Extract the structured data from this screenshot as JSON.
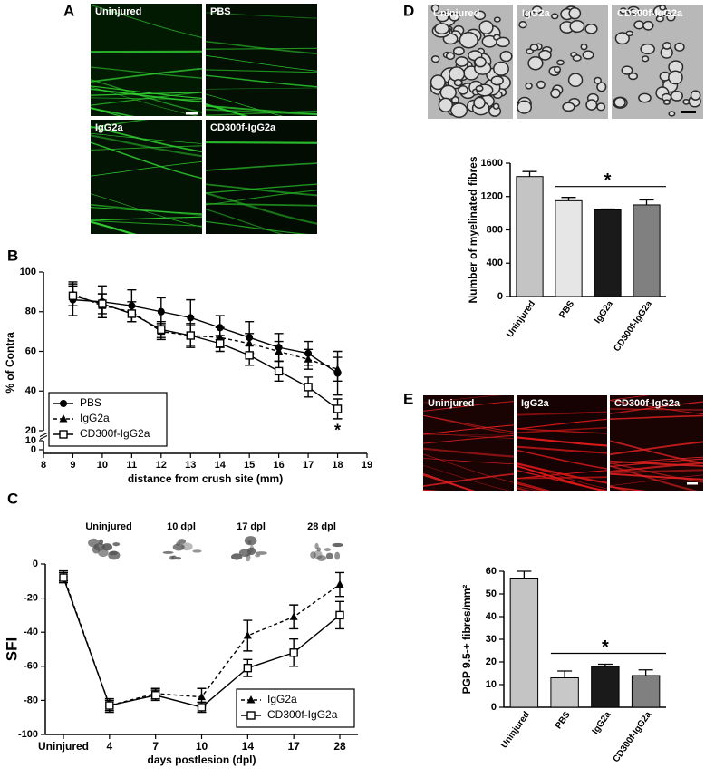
{
  "panels": {
    "A": {
      "letter": "A",
      "images": [
        "Uninjured",
        "PBS",
        "IgG2a",
        "CD300f-IgG2a"
      ]
    },
    "B": {
      "letter": "B"
    },
    "C": {
      "letter": "C",
      "images": [
        "Uninjured",
        "10 dpl",
        "17 dpl",
        "28 dpl"
      ]
    },
    "D": {
      "letter": "D",
      "images": [
        "Uninjured",
        "IgG2a",
        "CD300f-IgG2a"
      ]
    },
    "E": {
      "letter": "E",
      "images": [
        "Uninjured",
        "IgG2a",
        "CD300f-IgG2a"
      ]
    }
  },
  "chart_data": [
    {
      "type": "line",
      "xlabel": "distance from crush site (mm)",
      "ylabel": "% of Contra",
      "x": [
        9,
        10,
        11,
        12,
        13,
        14,
        15,
        16,
        17,
        18
      ],
      "xlim": [
        8,
        19
      ],
      "xticks": [
        8,
        9,
        10,
        11,
        12,
        13,
        14,
        15,
        16,
        17,
        18,
        19
      ],
      "ylim": [
        0,
        100
      ],
      "yticks": [
        0,
        10,
        20,
        40,
        60,
        80,
        100
      ],
      "axis_break": [
        10,
        20
      ],
      "legend": "lower left",
      "annotation": "*",
      "series": [
        {
          "name": "PBS",
          "color": "#000000",
          "marker": "circle",
          "dash": false,
          "values": [
            86,
            85,
            83,
            80,
            77,
            72,
            67,
            62,
            59,
            49
          ],
          "errors": [
            8,
            8,
            8,
            7,
            9,
            6,
            8,
            7,
            6,
            11
          ]
        },
        {
          "name": "IgG2a",
          "color": "#000000",
          "marker": "triangle",
          "dash": true,
          "values": [
            89,
            83,
            80,
            70,
            68,
            67,
            64,
            60,
            56,
            51
          ],
          "errors": [
            6,
            6,
            5,
            4,
            6,
            5,
            5,
            5,
            5,
            6
          ]
        },
        {
          "name": "CD300f-IgG2a",
          "color": "#000000",
          "marker": "square",
          "dash": false,
          "values": [
            88,
            84,
            79,
            71,
            68,
            64,
            58,
            50,
            42,
            31
          ],
          "errors": [
            5,
            5,
            4,
            4,
            5,
            4,
            5,
            5,
            5,
            5
          ]
        }
      ]
    },
    {
      "type": "line",
      "xlabel": "days postlesion (dpl)",
      "ylabel": "SFI",
      "categories": [
        "Uninjured",
        "4",
        "7",
        "10",
        "14",
        "17",
        "28"
      ],
      "ylim": [
        -100,
        0
      ],
      "yticks": [
        -100,
        -80,
        -60,
        -40,
        -20,
        0
      ],
      "legend": "lower right",
      "series": [
        {
          "name": "IgG2a",
          "color": "#000000",
          "marker": "triangle",
          "dash": true,
          "values": [
            -7,
            -83,
            -76,
            -78,
            -42,
            -31,
            -12
          ],
          "errors": [
            3,
            4,
            3,
            5,
            9,
            7,
            7
          ]
        },
        {
          "name": "CD300f-IgG2a",
          "color": "#000000",
          "marker": "square",
          "dash": false,
          "values": [
            -8,
            -83,
            -77,
            -84,
            -61,
            -52,
            -30
          ],
          "errors": [
            3,
            3,
            3,
            3,
            5,
            8,
            8
          ]
        }
      ]
    },
    {
      "type": "bar",
      "ylabel": "Number of myelinated fibres",
      "categories": [
        "Uninjured",
        "PBS",
        "IgG2a",
        "CD300f-IgG2a"
      ],
      "values": [
        1440,
        1150,
        1040,
        1100
      ],
      "errors": [
        60,
        40,
        10,
        60
      ],
      "colors": [
        "#c4c4c4",
        "#e6e6e6",
        "#1a1a1a",
        "#808080"
      ],
      "ylim": [
        0,
        1600
      ],
      "yticks": [
        0,
        400,
        800,
        1200,
        1600
      ],
      "annotation": "*"
    },
    {
      "type": "bar",
      "ylabel": "PGP 9.5-+ fibres/mm²",
      "categories": [
        "Uninjured",
        "PBS",
        "IgG2a",
        "CD300f-IgG2a"
      ],
      "values": [
        57,
        13,
        18,
        14
      ],
      "errors": [
        3,
        3,
        1,
        2.5
      ],
      "colors": [
        "#c4c4c4",
        "#c8c8c8",
        "#1a1a1a",
        "#808080"
      ],
      "ylim": [
        0,
        60
      ],
      "yticks": [
        0,
        10,
        20,
        30,
        40,
        50,
        60
      ],
      "annotation": "*"
    }
  ]
}
